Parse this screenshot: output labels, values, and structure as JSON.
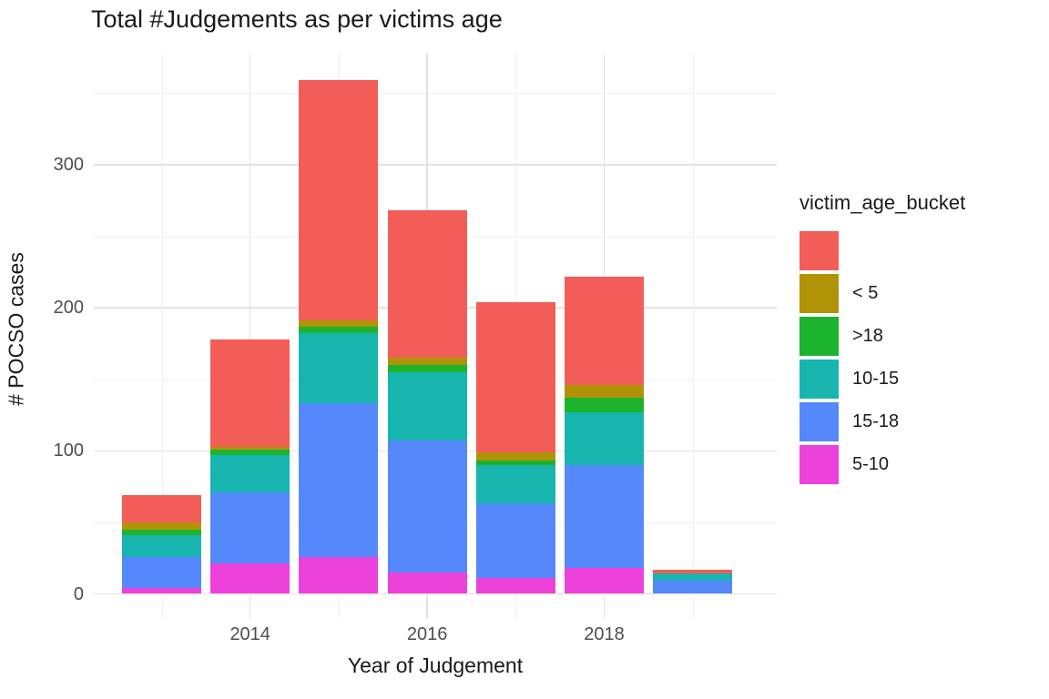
{
  "title": "Total #Judgements as per victims age",
  "axes": {
    "x_label": "Year of Judgement",
    "y_label": "# POCSO cases",
    "y_tick_labels": [
      "0",
      "100",
      "200",
      "300"
    ],
    "y_tick_values": [
      0,
      100,
      200,
      300
    ],
    "y_minor_values": [
      50,
      150,
      250,
      350
    ],
    "x_tick_labels": [
      "2014",
      "2016",
      "2018"
    ],
    "x_tick_years": [
      2014,
      2016,
      2018
    ],
    "x_minor_years": [
      2013,
      2015,
      2017,
      2019
    ]
  },
  "legend": {
    "title": "victim_age_bucket",
    "entries": [
      {
        "label": "",
        "color": "#F25E57"
      },
      {
        "label": "< 5",
        "color": "#B19307"
      },
      {
        "label": ">18",
        "color": "#1DB32E"
      },
      {
        "label": "10-15",
        "color": "#18B5AF"
      },
      {
        "label": "15-18",
        "color": "#5488FB"
      },
      {
        "label": "5-10",
        "color": "#EC42DB"
      }
    ]
  },
  "chart_data": {
    "type": "bar",
    "stacked": true,
    "title": "Total #Judgements as per victims age",
    "xlabel": "Year of Judgement",
    "ylabel": "# POCSO cases",
    "x": [
      2013,
      2014,
      2015,
      2016,
      2017,
      2018,
      2019
    ],
    "ylim": [
      0,
      375
    ],
    "grid": true,
    "legend_position": "right",
    "stack_order": "bottom-to-top",
    "series": [
      {
        "name": "5-10",
        "color": "#EC42DB",
        "values": [
          4,
          21,
          26,
          15,
          11,
          18,
          0
        ]
      },
      {
        "name": "15-18",
        "color": "#5488FB",
        "values": [
          22,
          50,
          107,
          92,
          52,
          72,
          9
        ]
      },
      {
        "name": "10-15",
        "color": "#18B5AF",
        "values": [
          15,
          26,
          49,
          48,
          27,
          37,
          5
        ]
      },
      {
        "name": ">18",
        "color": "#1DB32E",
        "values": [
          4,
          4,
          5,
          5,
          3,
          10,
          0
        ]
      },
      {
        "name": "< 5",
        "color": "#B19307",
        "values": [
          5,
          2,
          4,
          5,
          6,
          9,
          0
        ]
      },
      {
        "name": "",
        "color": "#F25E57",
        "values": [
          19,
          75,
          168,
          103,
          105,
          76,
          3
        ]
      }
    ],
    "totals": [
      68,
      178,
      359,
      268,
      204,
      222,
      17
    ]
  }
}
